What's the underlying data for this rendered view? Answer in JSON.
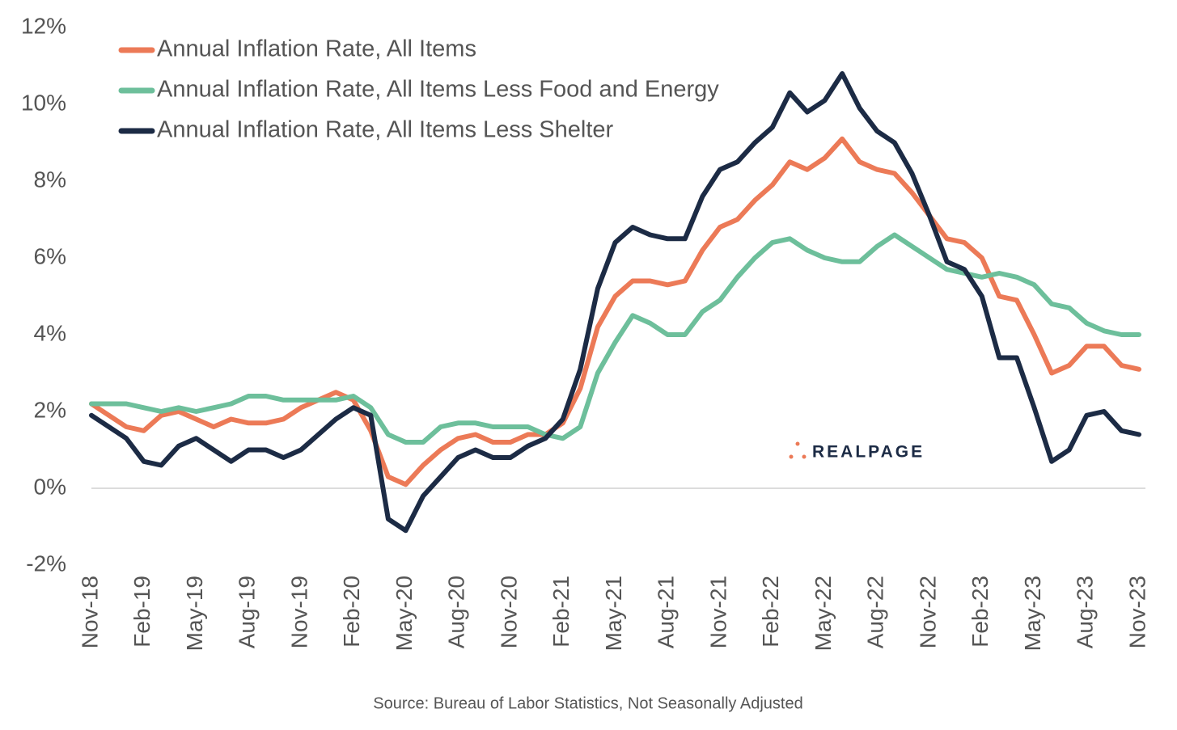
{
  "chart_data": {
    "type": "line",
    "categories": [
      "Nov-18",
      null,
      null,
      "Feb-19",
      null,
      null,
      "May-19",
      null,
      null,
      "Aug-19",
      null,
      null,
      "Nov-19",
      null,
      null,
      "Feb-20",
      null,
      null,
      "May-20",
      null,
      null,
      "Aug-20",
      null,
      null,
      "Nov-20",
      null,
      null,
      "Feb-21",
      null,
      null,
      "May-21",
      null,
      null,
      "Aug-21",
      null,
      null,
      "Nov-21",
      null,
      null,
      "Feb-22",
      null,
      null,
      "May-22",
      null,
      null,
      "Aug-22",
      null,
      null,
      "Nov-22",
      null,
      null,
      "Feb-23",
      null,
      null,
      "May-23",
      null,
      null,
      "Aug-23",
      null,
      null,
      "Nov-23"
    ],
    "series": [
      {
        "name": "Annual Inflation Rate, All Items",
        "color": "#ec7a57",
        "values": [
          2.2,
          1.9,
          1.6,
          1.5,
          1.9,
          2.0,
          1.8,
          1.6,
          1.8,
          1.7,
          1.7,
          1.8,
          2.1,
          2.3,
          2.5,
          2.3,
          1.5,
          0.3,
          0.1,
          0.6,
          1.0,
          1.3,
          1.4,
          1.2,
          1.2,
          1.4,
          1.4,
          1.7,
          2.6,
          4.2,
          5.0,
          5.4,
          5.4,
          5.3,
          5.4,
          6.2,
          6.8,
          7.0,
          7.5,
          7.9,
          8.5,
          8.3,
          8.6,
          9.1,
          8.5,
          8.3,
          8.2,
          7.7,
          7.1,
          6.5,
          6.4,
          6.0,
          5.0,
          4.9,
          4.0,
          3.0,
          3.2,
          3.7,
          3.7,
          3.2,
          3.1
        ]
      },
      {
        "name": "Annual Inflation Rate, All Items Less Food and Energy",
        "color": "#6dbf9b",
        "values": [
          2.2,
          2.2,
          2.2,
          2.1,
          2.0,
          2.1,
          2.0,
          2.1,
          2.2,
          2.4,
          2.4,
          2.3,
          2.3,
          2.3,
          2.3,
          2.4,
          2.1,
          1.4,
          1.2,
          1.2,
          1.6,
          1.7,
          1.7,
          1.6,
          1.6,
          1.6,
          1.4,
          1.3,
          1.6,
          3.0,
          3.8,
          4.5,
          4.3,
          4.0,
          4.0,
          4.6,
          4.9,
          5.5,
          6.0,
          6.4,
          6.5,
          6.2,
          6.0,
          5.9,
          5.9,
          6.3,
          6.6,
          6.3,
          6.0,
          5.7,
          5.6,
          5.5,
          5.6,
          5.5,
          5.3,
          4.8,
          4.7,
          4.3,
          4.1,
          4.0,
          4.0
        ]
      },
      {
        "name": "Annual Inflation Rate, All Items Less Shelter",
        "color": "#1c2b45",
        "values": [
          1.9,
          1.6,
          1.3,
          0.7,
          0.6,
          1.1,
          1.3,
          1.0,
          0.7,
          1.0,
          1.0,
          0.8,
          1.0,
          1.4,
          1.8,
          2.1,
          1.9,
          -0.8,
          -1.1,
          -0.2,
          0.3,
          0.8,
          1.0,
          0.8,
          0.8,
          1.1,
          1.3,
          1.8,
          3.1,
          5.2,
          6.4,
          6.8,
          6.6,
          6.5,
          6.5,
          7.6,
          8.3,
          8.5,
          9.0,
          9.4,
          10.3,
          9.8,
          10.1,
          10.8,
          9.9,
          9.3,
          9.0,
          8.2,
          7.1,
          5.9,
          5.7,
          5.0,
          3.4,
          3.4,
          2.1,
          0.7,
          1.0,
          1.9,
          2.0,
          1.5,
          1.4
        ]
      }
    ],
    "ylim": [
      -2,
      12
    ],
    "yticks": [
      {
        "value": -2,
        "label": "-2%"
      },
      {
        "value": 0,
        "label": "0%"
      },
      {
        "value": 2,
        "label": "2%"
      },
      {
        "value": 4,
        "label": "4%"
      },
      {
        "value": 6,
        "label": "6%"
      },
      {
        "value": 8,
        "label": "8%"
      },
      {
        "value": 10,
        "label": "10%"
      },
      {
        "value": 12,
        "label": "12%"
      }
    ],
    "legend": "top-left",
    "source": "Source: Bureau of Labor Statistics, Not Seasonally Adjusted",
    "logo": "REALPAGE"
  }
}
